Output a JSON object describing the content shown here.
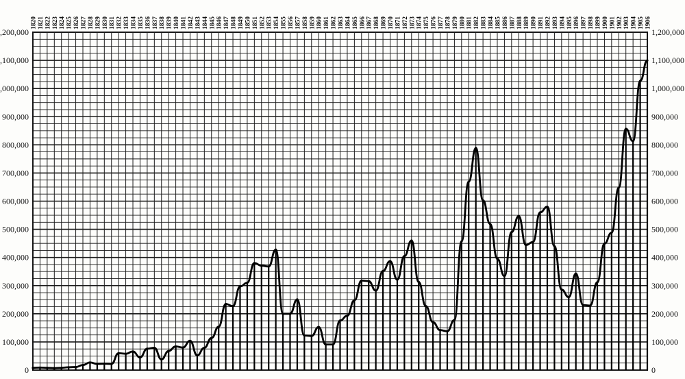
{
  "chart_data": {
    "type": "line",
    "title": "",
    "xlabel": "",
    "ylabel": "",
    "ylim": [
      0,
      1200000
    ],
    "xlim": [
      1820,
      1906
    ],
    "grid": true,
    "legend": "none",
    "y_ticks": [
      0,
      100000,
      200000,
      300000,
      400000,
      500000,
      600000,
      700000,
      800000,
      900000,
      1000000,
      1100000,
      1200000
    ],
    "y_tick_labels": [
      "0",
      "100,000",
      "200,000",
      "300,000",
      "400,000",
      "500,000",
      "600,000",
      "700,000",
      "800,000",
      "900,000",
      "1,000,000",
      "1,100,000",
      "1,200,000"
    ],
    "x_tick_labels": [
      "1820",
      "1821",
      "1822",
      "1823",
      "1824",
      "1825",
      "1826",
      "1827",
      "1828",
      "1829",
      "1830",
      "1831",
      "1832",
      "1833",
      "1834",
      "1835",
      "1836",
      "1837",
      "1838",
      "1839",
      "1840",
      "1841",
      "1842",
      "1843",
      "1844",
      "1845",
      "1846",
      "1847",
      "1848",
      "1849",
      "1850",
      "1851",
      "1852",
      "1853",
      "1854",
      "1855",
      "1856",
      "1857",
      "1858",
      "1859",
      "1860",
      "1861",
      "1862",
      "1863",
      "1864",
      "1865",
      "1866",
      "1867",
      "1868",
      "1869",
      "1870",
      "1871",
      "1872",
      "1873",
      "1874",
      "1875",
      "1876",
      "1877",
      "1878",
      "1879",
      "1880",
      "1881",
      "1882",
      "1883",
      "1884",
      "1885",
      "1886",
      "1887",
      "1888",
      "1889",
      "1890",
      "1891",
      "1892",
      "1893",
      "1894",
      "1895",
      "1896",
      "1897",
      "1898",
      "1899",
      "1900",
      "1901",
      "1902",
      "1903",
      "1904",
      "1905",
      "1906"
    ],
    "series": [
      {
        "x": [
          1820,
          1821,
          1822,
          1823,
          1824,
          1825,
          1826,
          1827,
          1828,
          1829,
          1830,
          1831,
          1832,
          1833,
          1834,
          1835,
          1836,
          1837,
          1838,
          1839,
          1840,
          1841,
          1842,
          1843,
          1844,
          1845,
          1846,
          1847,
          1848,
          1849,
          1850,
          1851,
          1852,
          1853,
          1854,
          1855,
          1856,
          1857,
          1858,
          1859,
          1860,
          1861,
          1862,
          1863,
          1864,
          1865,
          1866,
          1867,
          1868,
          1869,
          1870,
          1871,
          1872,
          1873,
          1874,
          1875,
          1876,
          1877,
          1878,
          1879,
          1880,
          1881,
          1882,
          1883,
          1884,
          1885,
          1886,
          1887,
          1888,
          1889,
          1890,
          1891,
          1892,
          1893,
          1894,
          1895,
          1896,
          1897,
          1898,
          1899,
          1900,
          1901,
          1902,
          1903,
          1904,
          1905,
          1906
        ],
        "values": [
          8000,
          9000,
          8000,
          7000,
          8000,
          10000,
          11000,
          18000,
          27000,
          22000,
          23000,
          22000,
          60000,
          58000,
          66000,
          45000,
          76000,
          79000,
          38000,
          68000,
          84000,
          80000,
          104000,
          52000,
          79000,
          114000,
          154000,
          235000,
          227000,
          297000,
          310000,
          380000,
          371000,
          368000,
          428000,
          200000,
          200000,
          251000,
          123000,
          121000,
          153000,
          91000,
          91000,
          176000,
          193000,
          248000,
          318000,
          316000,
          282000,
          352000,
          387000,
          321000,
          405000,
          460000,
          313000,
          227000,
          170000,
          142000,
          138000,
          178000,
          457000,
          669000,
          789000,
          603000,
          519000,
          395000,
          334000,
          490000,
          547000,
          444000,
          455000,
          560000,
          580000,
          440000,
          286000,
          259000,
          343000,
          231000,
          229000,
          312000,
          449000,
          488000,
          648000,
          857000,
          813000,
          1027000,
          1100000
        ]
      }
    ]
  }
}
